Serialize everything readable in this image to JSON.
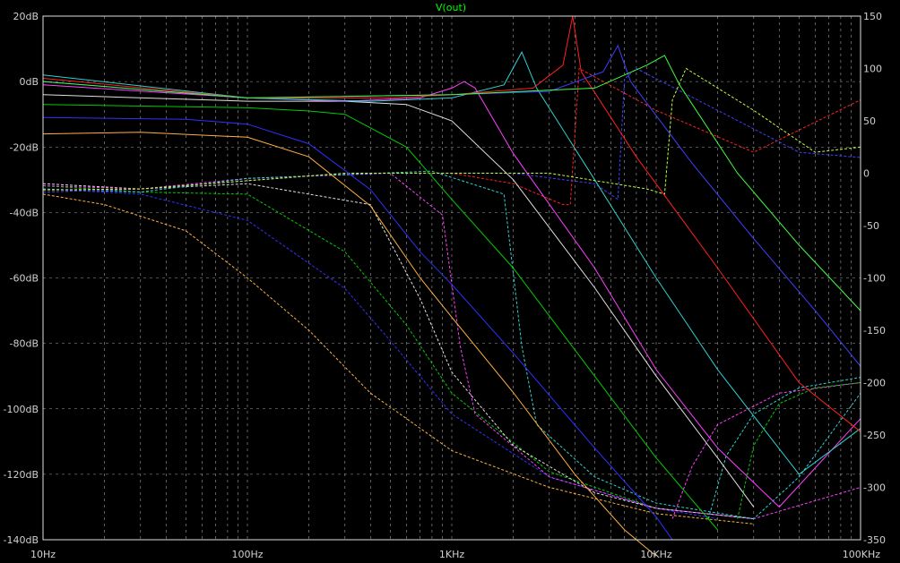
{
  "chart_data": {
    "type": "line",
    "title": "V(out)",
    "title_color": "#00ff00",
    "background": "#000000",
    "grid": true,
    "grid_color": "#a0a0a0",
    "x_scale": "log",
    "xlim": [
      10,
      100000
    ],
    "x_ticks": [
      {
        "value": 10,
        "label": "10Hz"
      },
      {
        "value": 100,
        "label": "100Hz"
      },
      {
        "value": 1000,
        "label": "1KHz"
      },
      {
        "value": 10000,
        "label": "10KHz"
      },
      {
        "value": 100000,
        "label": "100KHz"
      }
    ],
    "ylim_left": [
      -140,
      20
    ],
    "y_ticks_left": [
      {
        "value": 20,
        "label": "20dB"
      },
      {
        "value": 0,
        "label": "0dB"
      },
      {
        "value": -20,
        "label": "-20dB"
      },
      {
        "value": -40,
        "label": "-40dB"
      },
      {
        "value": -60,
        "label": "-60dB"
      },
      {
        "value": -80,
        "label": "-80dB"
      },
      {
        "value": -100,
        "label": "-100dB"
      },
      {
        "value": -120,
        "label": "-120dB"
      },
      {
        "value": -140,
        "label": "-140dB"
      }
    ],
    "ylim_right": [
      -350,
      150
    ],
    "y_ticks_right": [
      {
        "value": 150,
        "label": "150"
      },
      {
        "value": 100,
        "label": "100"
      },
      {
        "value": 50,
        "label": "50"
      },
      {
        "value": 0,
        "label": "0"
      },
      {
        "value": -50,
        "label": "-50"
      },
      {
        "value": -100,
        "label": "-100"
      },
      {
        "value": -150,
        "label": "-150"
      },
      {
        "value": -200,
        "label": "-200"
      },
      {
        "value": -250,
        "label": "-250"
      },
      {
        "value": -300,
        "label": "-300"
      },
      {
        "value": -350,
        "label": "-350"
      }
    ],
    "magnitude_series": [
      {
        "color": "#ffb040",
        "x": [
          10,
          30,
          100,
          200,
          400,
          700,
          1000,
          2000,
          4000,
          7000,
          10000
        ],
        "y": [
          -16,
          -15.5,
          -17,
          -23,
          -38,
          -60,
          -72,
          -95,
          -120,
          -137,
          -145
        ]
      },
      {
        "color": "#3030ff",
        "x": [
          10,
          50,
          100,
          200,
          400,
          700,
          1000,
          2000,
          5000,
          10000,
          12000
        ],
        "y": [
          -11,
          -11.5,
          -13,
          -19,
          -33,
          -52,
          -62,
          -83,
          -112,
          -133,
          -140
        ]
      },
      {
        "color": "#00cc00",
        "x": [
          10,
          100,
          200,
          300,
          600,
          1000,
          2000,
          5000,
          10000,
          20000
        ],
        "y": [
          -7,
          -8,
          -9,
          -10,
          -20,
          -36,
          -57,
          -90,
          -115,
          -137
        ]
      },
      {
        "color": "#e0e0e0",
        "x": [
          10,
          100,
          300,
          600,
          1000,
          2000,
          5000,
          10000,
          20000,
          30000
        ],
        "y": [
          -4,
          -6,
          -6,
          -7,
          -12,
          -30,
          -63,
          -90,
          -115,
          -130
        ]
      },
      {
        "color": "#ff40ff",
        "x": [
          10,
          100,
          300,
          700,
          1000,
          1150,
          1300,
          2000,
          5000,
          10000,
          20000,
          40000,
          100000
        ],
        "y": [
          -1,
          -5,
          -6,
          -5,
          -2,
          0,
          -2,
          -22,
          -57,
          -88,
          -112,
          -130,
          -103
        ]
      },
      {
        "color": "#30d0d0",
        "x": [
          10,
          100,
          400,
          1000,
          1800,
          2200,
          2600,
          5000,
          10000,
          20000,
          50000,
          100000
        ],
        "y": [
          2,
          -5,
          -6,
          -5,
          -1,
          9,
          -2,
          -30,
          -60,
          -88,
          -120,
          -106
        ]
      },
      {
        "color": "#ff2020",
        "x": [
          10,
          100,
          500,
          1000,
          2500,
          3500,
          3900,
          4300,
          8000,
          20000,
          50000,
          100000
        ],
        "y": [
          1,
          -5,
          -5,
          -4,
          -2,
          5,
          20,
          3,
          -23,
          -57,
          -92,
          -107
        ]
      },
      {
        "color": "#4040ff",
        "x": [
          10,
          100,
          1000,
          3000,
          5500,
          6500,
          7500,
          15000,
          30000,
          60000,
          100000
        ],
        "y": [
          0,
          -5,
          -4,
          -3,
          3,
          11,
          0,
          -25,
          -48,
          -70,
          -87
        ]
      },
      {
        "color": "#40ff40",
        "x": [
          10,
          100,
          1000,
          5000,
          9000,
          11000,
          13000,
          25000,
          50000,
          100000
        ],
        "y": [
          0,
          -5,
          -4,
          -2,
          5,
          8,
          -1,
          -28,
          -50,
          -70
        ]
      }
    ],
    "phase_series": [
      {
        "color": "#ffb040",
        "x": [
          10,
          20,
          50,
          100,
          200,
          400,
          1000,
          3000,
          10000,
          30000
        ],
        "y": [
          -20,
          -30,
          -55,
          -100,
          -150,
          -210,
          -265,
          -300,
          -325,
          -335
        ]
      },
      {
        "color": "#3030ff",
        "x": [
          10,
          30,
          100,
          300,
          500,
          1000,
          3000,
          10000,
          20000
        ],
        "y": [
          -15,
          -20,
          -45,
          -110,
          -160,
          -230,
          -290,
          -320,
          -330
        ]
      },
      {
        "color": "#00cc00",
        "x": [
          10,
          30,
          100,
          300,
          600,
          1000,
          3000,
          10000,
          30000
        ],
        "y": [
          -12,
          -18,
          -20,
          -75,
          -145,
          -210,
          -285,
          -320,
          -330
        ]
      },
      {
        "color": "#e0e0e0",
        "x": [
          10,
          30,
          100,
          400,
          700,
          1000,
          2000,
          5000,
          10000,
          30000
        ],
        "y": [
          -10,
          -15,
          -10,
          -30,
          -120,
          -190,
          -260,
          -305,
          -320,
          -330
        ]
      },
      {
        "color": "#ff40ff",
        "x": [
          10,
          30,
          100,
          500,
          900,
          1100,
          1300,
          3000,
          10000,
          30000,
          100000
        ],
        "y": [
          -12,
          -15,
          -5,
          0,
          -40,
          -165,
          -230,
          -290,
          -320,
          -330,
          -300
        ]
      },
      {
        "color": "#30d0d0",
        "x": [
          10,
          30,
          100,
          800,
          1800,
          2200,
          2600,
          5000,
          10000,
          30000,
          50000,
          100000
        ],
        "y": [
          -15,
          -18,
          -5,
          2,
          -20,
          -165,
          -240,
          -290,
          -315,
          -330,
          -290,
          -210
        ]
      },
      {
        "color": "#ff2020",
        "x": [
          10,
          30,
          300,
          1000,
          2000,
          3500,
          3800,
          4200,
          10000,
          30000,
          100000
        ],
        "y": [
          -18,
          -15,
          0,
          0,
          -10,
          -30,
          -30,
          100,
          60,
          20,
          70
        ]
      },
      {
        "color": "#4040ff",
        "x": [
          10,
          30,
          300,
          2000,
          5000,
          6500,
          7000,
          8000,
          20000,
          50000,
          100000
        ],
        "y": [
          -18,
          -15,
          0,
          0,
          -10,
          -25,
          90,
          100,
          60,
          20,
          15
        ]
      },
      {
        "color": "#c0ff40",
        "x": [
          10,
          30,
          300,
          3000,
          9000,
          11000,
          12000,
          14000,
          30000,
          60000,
          100000
        ],
        "y": [
          -16,
          -15,
          0,
          0,
          -15,
          -20,
          70,
          100,
          60,
          20,
          25
        ]
      },
      {
        "color": "#ff40ff",
        "x": [
          12000,
          15000,
          20000,
          40000,
          100000
        ],
        "y": [
          -330,
          -280,
          -240,
          -210,
          -200
        ]
      },
      {
        "color": "#30d0d0",
        "x": [
          18000,
          22000,
          30000,
          50000,
          100000
        ],
        "y": [
          -330,
          -270,
          -230,
          -205,
          -195
        ]
      },
      {
        "color": "#00cc00",
        "x": [
          25000,
          30000,
          40000,
          60000,
          100000
        ],
        "y": [
          -330,
          -260,
          -220,
          -205,
          -200
        ]
      }
    ]
  }
}
